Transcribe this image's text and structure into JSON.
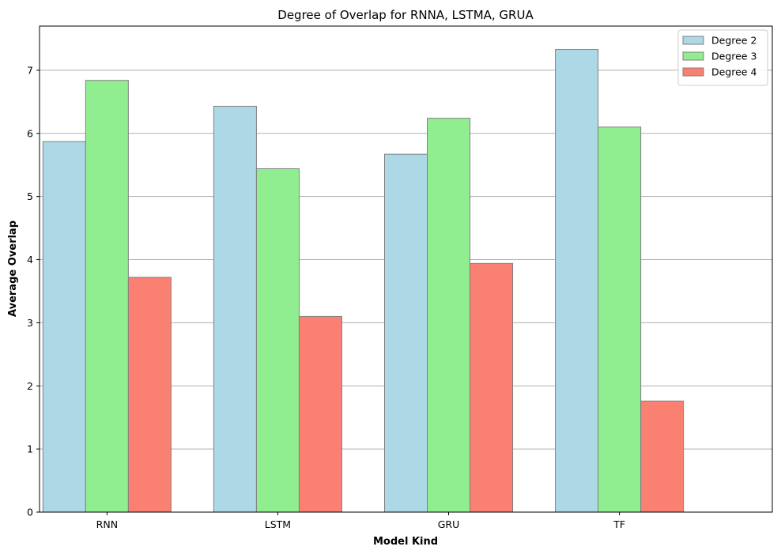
{
  "chart_data": {
    "type": "bar",
    "title": "Degree of Overlap for RNNA, LSTMA, GRUA",
    "xlabel": "Model Kind",
    "ylabel": "Average Overlap",
    "categories": [
      "RNN",
      "LSTM",
      "GRU",
      "TF"
    ],
    "series": [
      {
        "name": "Degree 2",
        "color": "#add8e6",
        "values": [
          5.87,
          6.43,
          5.67,
          7.33
        ]
      },
      {
        "name": "Degree 3",
        "color": "#90ee90",
        "values": [
          6.84,
          5.44,
          6.24,
          6.1
        ]
      },
      {
        "name": "Degree 4",
        "color": "#fa8072",
        "values": [
          3.72,
          3.1,
          3.94,
          1.76
        ]
      }
    ],
    "ylim": [
      0,
      7.7
    ],
    "yticks": [
      0,
      1,
      2,
      3,
      4,
      5,
      6,
      7
    ],
    "grid": "y",
    "legend_position": "top-right",
    "edge_color": "#808080"
  }
}
